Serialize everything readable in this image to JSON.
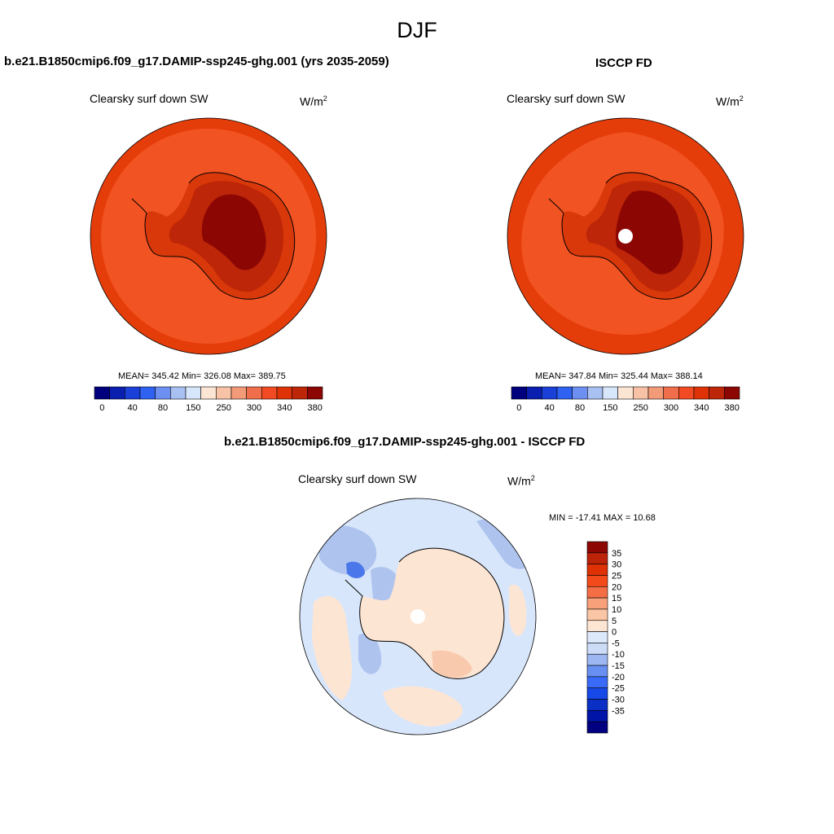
{
  "title": "DJF",
  "colors": {
    "abs_palette": [
      "#00007f",
      "#0a1fb0",
      "#1a40d8",
      "#2f62f0",
      "#6d8ff2",
      "#a9c0f2",
      "#d8e6fb",
      "#fde5d3",
      "#f8c2a6",
      "#f39a78",
      "#f06e4c",
      "#f24a22",
      "#de3306",
      "#bd2608",
      "#8c0704"
    ],
    "diff_palette": [
      "#000080",
      "#0014a8",
      "#0a2fc4",
      "#1748e8",
      "#3a6bf8",
      "#6890f2",
      "#9cb7f2",
      "#ccdcf7",
      "#dce9fb",
      "#fde5d3",
      "#fbc6a5",
      "#f8a07a",
      "#f36d45",
      "#f24a1a",
      "#de3106",
      "#bd2308",
      "#8c0704"
    ],
    "ocean_a": "#f25322",
    "ring_a": "#e53d0a",
    "coast_a": "#d8380a",
    "mid_a": "#bd2608",
    "core_a": "#8c0704",
    "ocean_b": "#f25322",
    "ring_b": "#e53d0a",
    "diff_base": "#d8e6fb",
    "diff_pos": "#fde5d3",
    "diff_neg": "#aec4ef",
    "diff_pos2": "#f9c9ad",
    "diff_neg2": "#4a78ea"
  },
  "panels": [
    {
      "name": "model",
      "title": "b.e21.B1850cmip6.f09_g17.DAMIP-ssp245-ghg.001 (yrs 2035-2059)",
      "variable": "Clearsky surf down SW",
      "units_base": "W/m",
      "units_exp": "2",
      "stats_text": "MEAN= 345.42  Min= 326.08  Max= 389.75"
    },
    {
      "name": "obs",
      "title": "ISCCP FD",
      "variable": "Clearsky surf down SW",
      "units_base": "W/m",
      "units_exp": "2",
      "stats_text": "MEAN= 347.84  Min= 325.44  Max= 388.14"
    },
    {
      "name": "difference",
      "title": "b.e21.B1850cmip6.f09_g17.DAMIP-ssp245-ghg.001 - ISCCP FD",
      "variable": "Clearsky surf down SW",
      "units_base": "W/m",
      "units_exp": "2",
      "stats_text": "MIN = -17.41 MAX =  10.68"
    }
  ],
  "abs_colorbar_labels": [
    "0",
    "40",
    "80",
    "150",
    "250",
    "300",
    "340",
    "380"
  ],
  "diff_colorbar_labels": [
    "35",
    "30",
    "25",
    "20",
    "15",
    "10",
    "5",
    "0",
    "-5",
    "-10",
    "-15",
    "-20",
    "-25",
    "-30",
    "-35"
  ]
}
